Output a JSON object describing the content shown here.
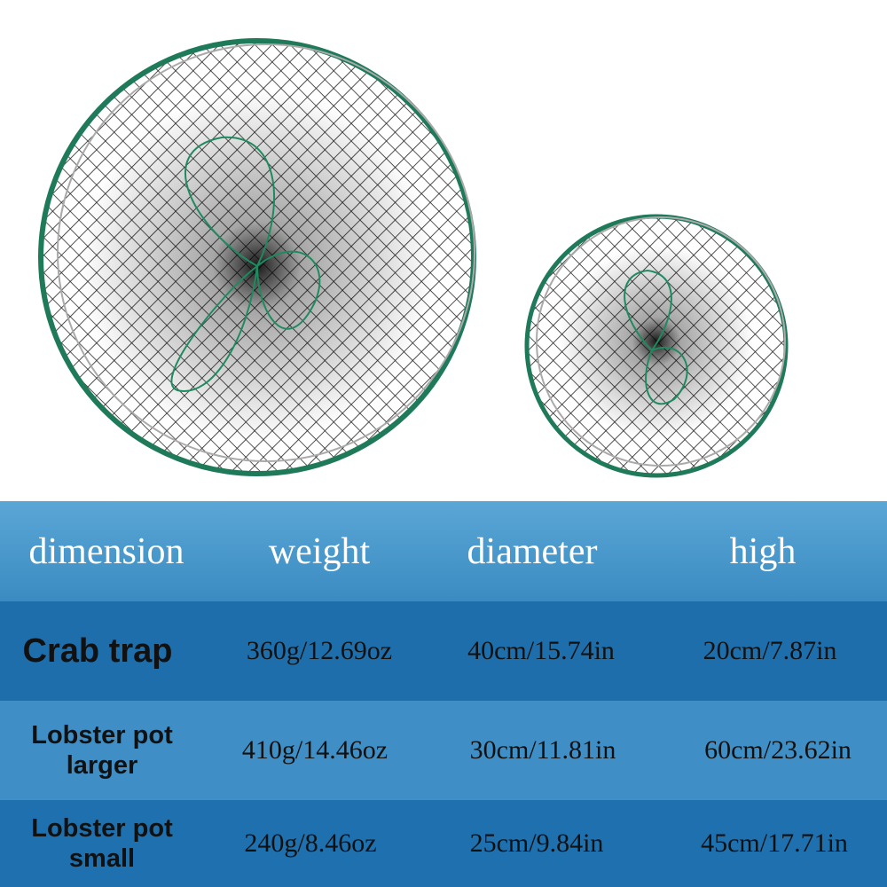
{
  "table": {
    "header": [
      "dimension",
      "weight",
      "diameter",
      "high"
    ],
    "rows": [
      [
        "Crab trap",
        "360g/12.69oz",
        "40cm/15.74in",
        "20cm/7.87in"
      ],
      [
        "Lobster pot larger",
        "410g/14.46oz",
        "30cm/11.81in",
        "60cm/23.62in"
      ],
      [
        "Lobster pot small",
        "240g/8.46oz",
        "25cm/9.84in",
        "45cm/17.71in"
      ]
    ]
  }
}
